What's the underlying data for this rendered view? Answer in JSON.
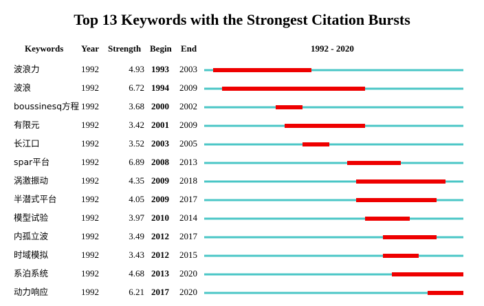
{
  "chart_data": {
    "type": "table",
    "title": "Top 13 Keywords with the Strongest Citation Bursts",
    "columns": [
      "Keywords",
      "Year",
      "Strength",
      "Begin",
      "End",
      "1992 - 2020"
    ],
    "range_start": 1992,
    "range_end": 2020,
    "timeline_color": "#4ac6c6",
    "burst_color": "#ee0000",
    "rows": [
      {
        "keyword": "波浪力",
        "year": "1992",
        "strength": "4.93",
        "begin": "1993",
        "end": "2003"
      },
      {
        "keyword": "波浪",
        "year": "1992",
        "strength": "6.72",
        "begin": "1994",
        "end": "2009"
      },
      {
        "keyword": "boussinesq方程",
        "year": "1992",
        "strength": "3.68",
        "begin": "2000",
        "end": "2002"
      },
      {
        "keyword": "有限元",
        "year": "1992",
        "strength": "3.42",
        "begin": "2001",
        "end": "2009"
      },
      {
        "keyword": "长江口",
        "year": "1992",
        "strength": "3.52",
        "begin": "2003",
        "end": "2005"
      },
      {
        "keyword": "spar平台",
        "year": "1992",
        "strength": "6.89",
        "begin": "2008",
        "end": "2013"
      },
      {
        "keyword": "涡激振动",
        "year": "1992",
        "strength": "4.35",
        "begin": "2009",
        "end": "2018"
      },
      {
        "keyword": "半潜式平台",
        "year": "1992",
        "strength": "4.05",
        "begin": "2009",
        "end": "2017"
      },
      {
        "keyword": "模型试验",
        "year": "1992",
        "strength": "3.97",
        "begin": "2010",
        "end": "2014"
      },
      {
        "keyword": "内孤立波",
        "year": "1992",
        "strength": "3.49",
        "begin": "2012",
        "end": "2017"
      },
      {
        "keyword": "时域模拟",
        "year": "1992",
        "strength": "3.43",
        "begin": "2012",
        "end": "2015"
      },
      {
        "keyword": "系泊系统",
        "year": "1992",
        "strength": "4.68",
        "begin": "2013",
        "end": "2020"
      },
      {
        "keyword": "动力响应",
        "year": "1992",
        "strength": "6.21",
        "begin": "2017",
        "end": "2020"
      }
    ]
  }
}
